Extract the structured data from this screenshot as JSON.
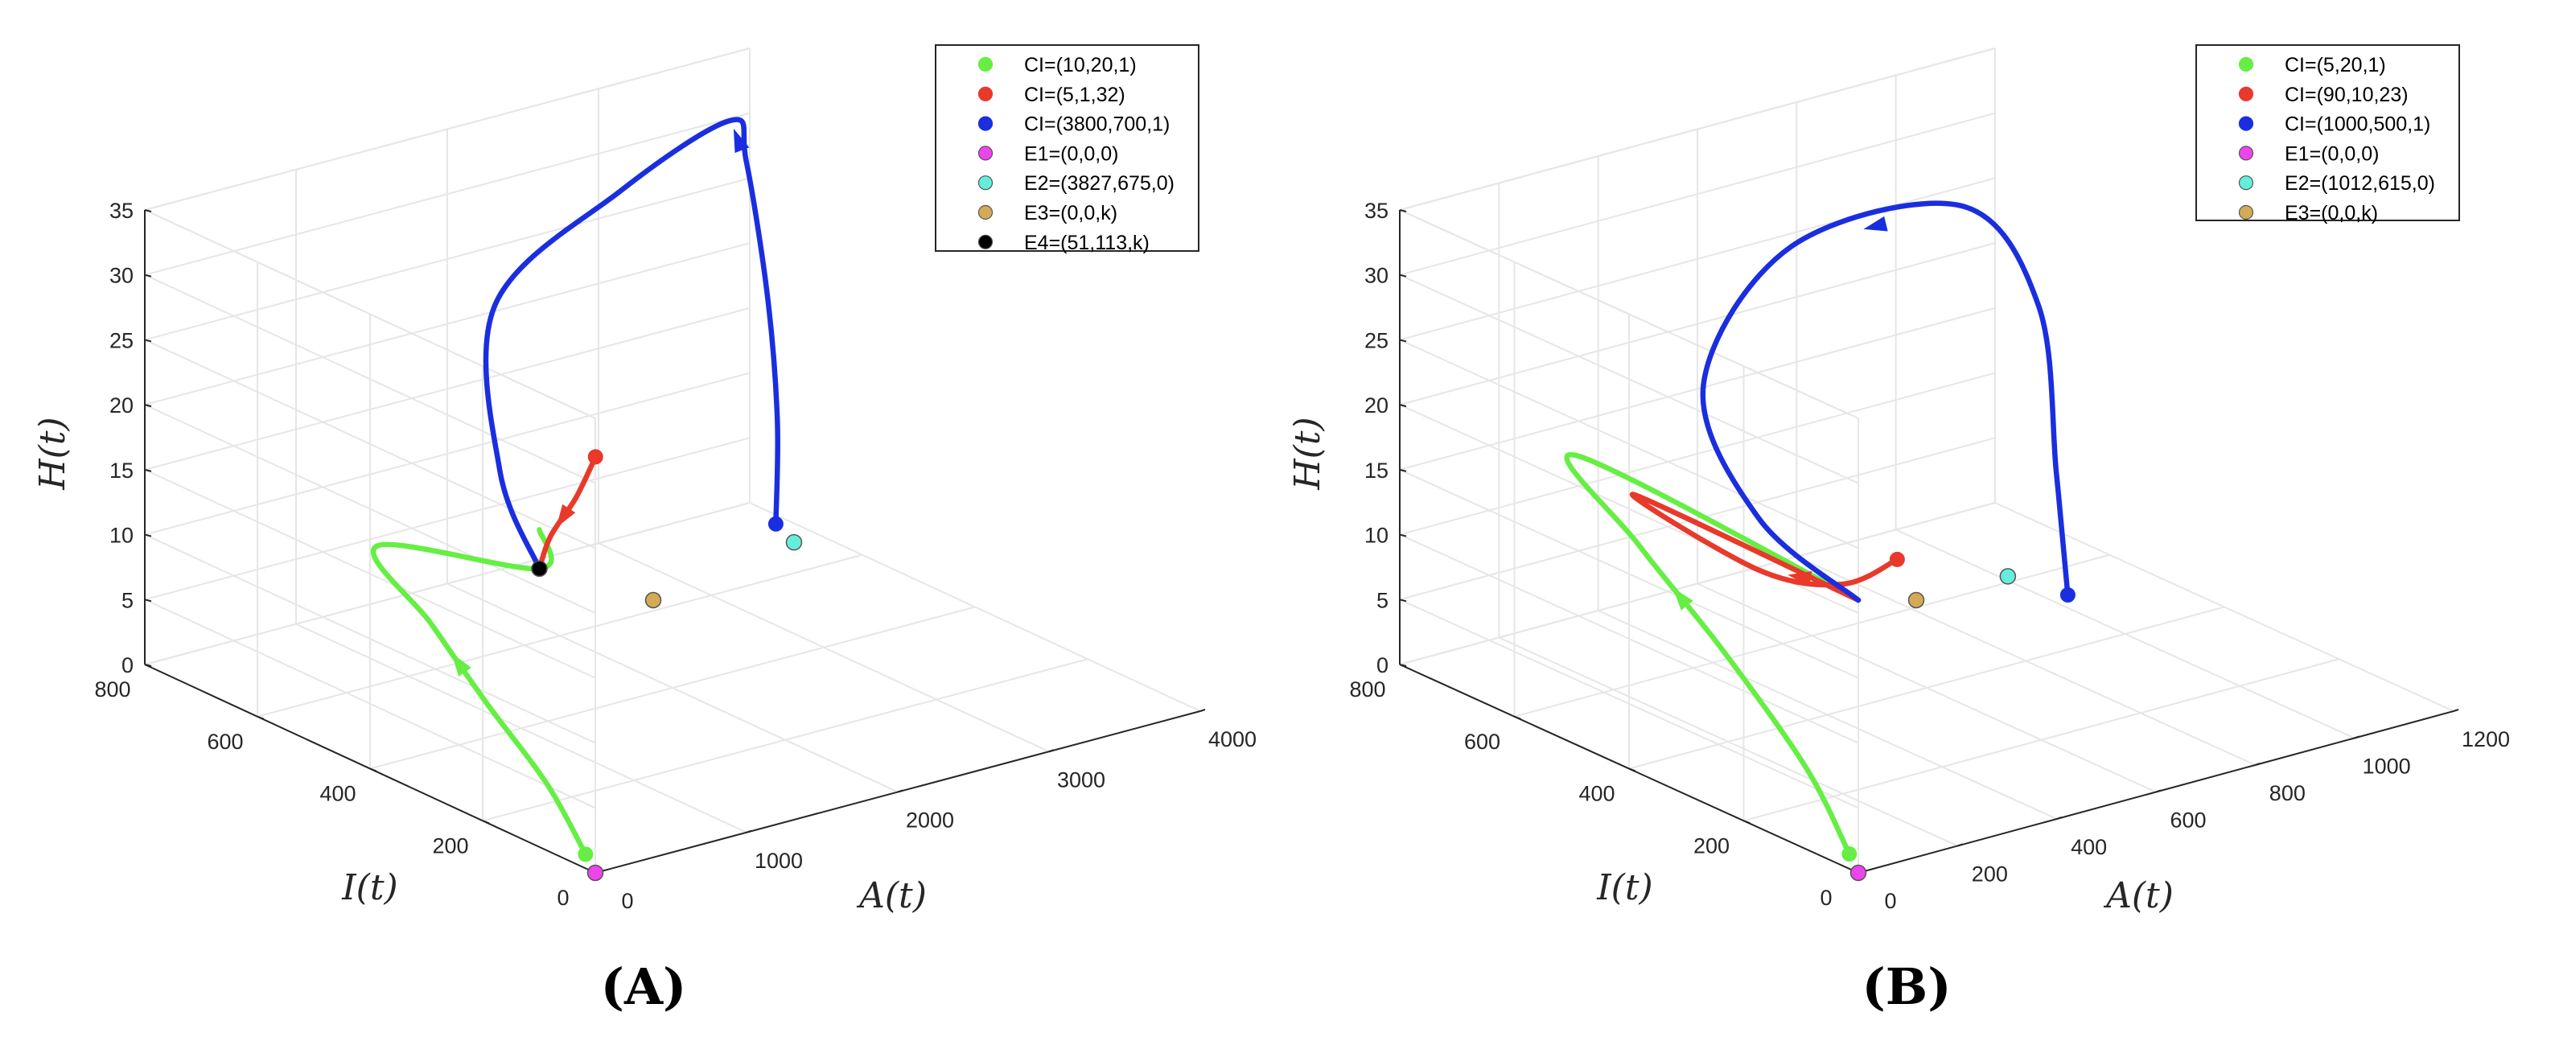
{
  "chart_data": [
    {
      "type": "line",
      "panel_label": "(A)",
      "xlabel": "A(t)",
      "ylabel": "I(t)",
      "zlabel": "H(t)",
      "x_ticks": [
        "0",
        "1000",
        "2000",
        "3000",
        "4000"
      ],
      "y_ticks": [
        "0",
        "200",
        "400",
        "600",
        "800"
      ],
      "z_ticks": [
        "0",
        "5",
        "10",
        "15",
        "20",
        "25",
        "30",
        "35"
      ],
      "xlim": [
        0,
        4000
      ],
      "ylim": [
        0,
        800
      ],
      "zlim": [
        0,
        35
      ],
      "grid": true,
      "legend_position": "top-right",
      "series": [
        {
          "name": "CI=(10,20,1)",
          "color": "#66ee44",
          "points": [
            [
              10,
              20,
              1
            ],
            [
              15,
              90,
              5
            ],
            [
              25,
              200,
              9
            ],
            [
              35,
              300,
              13
            ],
            [
              45,
              400,
              17
            ],
            [
              51,
              113,
              21
            ],
            [
              51,
              113,
              24
            ]
          ]
        },
        {
          "name": "CI=(5,1,32)",
          "color": "#e8392a",
          "points": [
            [
              5,
              1,
              32
            ],
            [
              20,
              40,
              28
            ],
            [
              40,
              90,
              24
            ],
            [
              51,
              113,
              21
            ]
          ]
        },
        {
          "name": "CI=(3800,700,1)",
          "color": "#1a2ee0",
          "points": [
            [
              3800,
              700,
              1
            ],
            [
              3810,
              700,
              9
            ],
            [
              3820,
              720,
              18
            ],
            [
              3790,
              750,
              28
            ],
            [
              3500,
              700,
              33
            ],
            [
              2400,
              600,
              33
            ],
            [
              1200,
              500,
              30
            ],
            [
              300,
              250,
              25
            ],
            [
              51,
              113,
              21
            ]
          ]
        }
      ],
      "equilibria": [
        {
          "name": "E1=(0,0,0)",
          "color": "#ee44ee",
          "point": [
            0,
            0,
            0
          ]
        },
        {
          "name": "E2=(3827,675,0)",
          "color": "#66eedd",
          "point": [
            3827,
            675,
            0
          ]
        },
        {
          "name": "E3=(0,0,k)",
          "color": "#d4aa55",
          "point": [
            0,
            0,
            21
          ]
        },
        {
          "name": "E4=(51,113,k)",
          "color": "#000000",
          "point": [
            51,
            113,
            21
          ]
        }
      ]
    },
    {
      "type": "line",
      "panel_label": "(B)",
      "xlabel": "A(t)",
      "ylabel": "I(t)",
      "zlabel": "H(t)",
      "x_ticks": [
        "0",
        "200",
        "400",
        "600",
        "800",
        "1000",
        "1200"
      ],
      "y_ticks": [
        "0",
        "200",
        "400",
        "600",
        "800"
      ],
      "z_ticks": [
        "0",
        "5",
        "10",
        "15",
        "20",
        "25",
        "30",
        "35"
      ],
      "xlim": [
        0,
        1200
      ],
      "ylim": [
        0,
        800
      ],
      "zlim": [
        0,
        35
      ],
      "grid": true,
      "legend_position": "top-right",
      "series": [
        {
          "name": "CI=(5,20,1)",
          "color": "#66ee44",
          "points": [
            [
              5,
              20,
              1
            ],
            [
              10,
              100,
              6
            ],
            [
              15,
              250,
              12
            ],
            [
              20,
              400,
              17
            ],
            [
              10,
              500,
              22
            ],
            [
              0,
              0,
              21
            ]
          ]
        },
        {
          "name": "CI=(90,10,23)",
          "color": "#e8392a",
          "points": [
            [
              90,
              10,
              23
            ],
            [
              60,
              80,
              20
            ],
            [
              30,
              200,
              19
            ],
            [
              10,
              400,
              21
            ],
            [
              0,
              0,
              21
            ]
          ]
        },
        {
          "name": "CI=(1000,500,1)",
          "color": "#1a2ee0",
          "points": [
            [
              1000,
              500,
              1
            ],
            [
              1000,
              520,
              10
            ],
            [
              1010,
              560,
              22
            ],
            [
              900,
              600,
              30
            ],
            [
              500,
              550,
              32
            ],
            [
              150,
              400,
              28
            ],
            [
              30,
              200,
              23
            ],
            [
              0,
              0,
              21
            ]
          ]
        }
      ],
      "equilibria": [
        {
          "name": "E1=(0,0,0)",
          "color": "#ee44ee",
          "point": [
            0,
            0,
            0
          ]
        },
        {
          "name": "E2=(1012,615,0)",
          "color": "#66eedd",
          "point": [
            1012,
            615,
            0
          ]
        },
        {
          "name": "E3=(0,0,k)",
          "color": "#d4aa55",
          "point": [
            0,
            0,
            21
          ]
        }
      ]
    }
  ]
}
